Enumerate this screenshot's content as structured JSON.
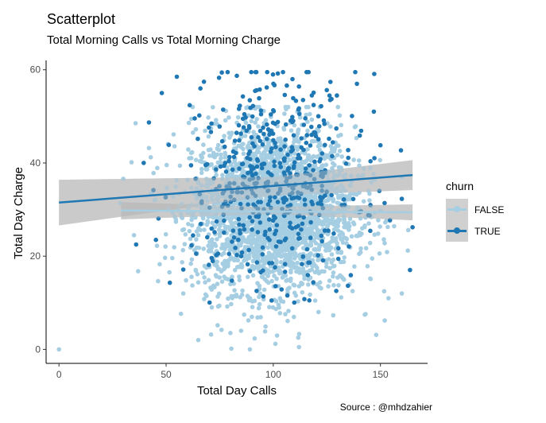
{
  "chart_data": {
    "type": "scatter",
    "title": "Scatterplot",
    "subtitle": "Total Morning Calls vs Total Morning Charge",
    "xlabel": "Total Day Calls",
    "ylabel": "Total Day Charge",
    "caption": "Source : @mhdzahier",
    "xlim": [
      -6,
      172
    ],
    "ylim": [
      -3,
      62
    ],
    "x_ticks": [
      0,
      50,
      100,
      150
    ],
    "y_ticks": [
      0,
      20,
      40,
      60
    ],
    "grid": false,
    "legend": {
      "title": "churn",
      "position": "right",
      "entries": [
        "FALSE",
        "TRUE"
      ]
    },
    "series": [
      {
        "name": "FALSE",
        "color": "#a6cee3",
        "points_note": "dense cloud of ~2850 points centered near (100, 30)",
        "sample_points": [
          [
            0,
            0
          ],
          [
            30,
            36.6
          ],
          [
            35,
            24.5
          ],
          [
            42,
            43.2
          ],
          [
            50,
            33.1
          ],
          [
            58,
            12
          ],
          [
            65,
            2
          ],
          [
            71,
            3.2
          ],
          [
            80,
            14
          ],
          [
            85,
            4
          ],
          [
            93,
            17.4
          ],
          [
            101,
            1.2
          ],
          [
            112,
            0.5
          ],
          [
            120,
            21.4
          ],
          [
            128,
            7.3
          ],
          [
            137,
            12.5
          ],
          [
            148,
            3.1
          ],
          [
            152,
            6.2
          ],
          [
            160,
            12
          ],
          [
            163,
            25.6
          ]
        ],
        "trend": {
          "x": [
            29,
            165
          ],
          "y": [
            29.8,
            29.4
          ],
          "ci": [
            [
              29,
              27.9,
              31.6
            ],
            [
              97,
              29.0,
              30.6
            ],
            [
              165,
              27.7,
              31.1
            ]
          ]
        }
      },
      {
        "name": "TRUE",
        "color": "#1f78b4",
        "points_note": "~480 points centered near (100, 36)",
        "sample_points": [
          [
            36,
            22.5
          ],
          [
            42,
            48.7
          ],
          [
            48,
            55
          ],
          [
            55,
            58.5
          ],
          [
            61,
            52.4
          ],
          [
            66,
            56
          ],
          [
            76,
            59.4
          ],
          [
            83,
            58.7
          ],
          [
            93,
            45.5
          ],
          [
            100,
            51.3
          ],
          [
            112,
            56.4
          ],
          [
            118,
            54.5
          ],
          [
            126,
            45.2
          ],
          [
            135,
            41.1
          ],
          [
            141,
            46.9
          ],
          [
            150,
            43.8
          ],
          [
            160,
            32.3
          ],
          [
            165,
            26.2
          ]
        ],
        "trend": {
          "x": [
            0,
            165
          ],
          "y": [
            31.5,
            37.4
          ],
          "ci": [
            [
              0,
              26.6,
              36.4
            ],
            [
              100,
              33.0,
              37.0
            ],
            [
              165,
              34.2,
              40.6
            ]
          ]
        }
      }
    ]
  }
}
